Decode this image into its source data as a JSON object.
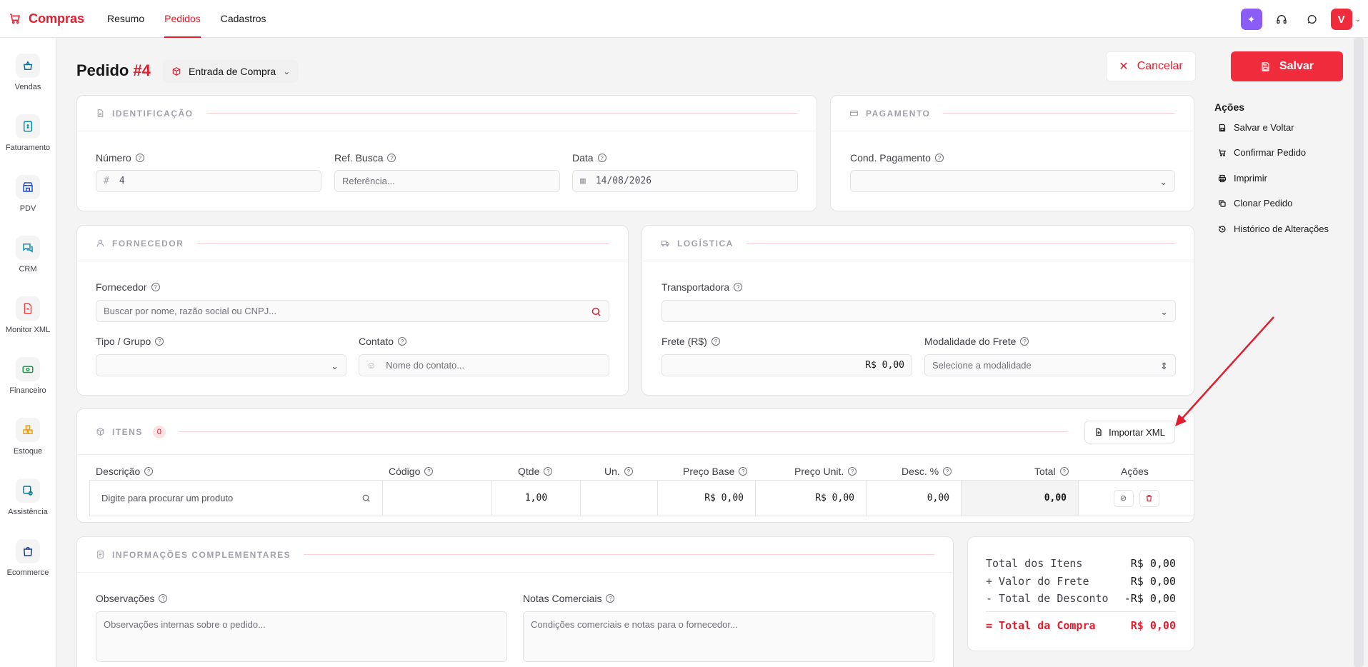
{
  "app": {
    "brand": "Compras",
    "nav": [
      {
        "label": "Resumo"
      },
      {
        "label": "Pedidos"
      },
      {
        "label": "Cadastros"
      }
    ],
    "avatar_initial": "V"
  },
  "sidebar": {
    "items": [
      {
        "label": "Vendas",
        "icon": "basket-icon"
      },
      {
        "label": "Faturamento",
        "icon": "invoice-icon"
      },
      {
        "label": "PDV",
        "icon": "store-icon"
      },
      {
        "label": "CRM",
        "icon": "chat-icon"
      },
      {
        "label": "Monitor XML",
        "icon": "file-icon"
      },
      {
        "label": "Financeiro",
        "icon": "money-icon"
      },
      {
        "label": "Estoque",
        "icon": "boxes-icon"
      },
      {
        "label": "Assistência",
        "icon": "service-icon"
      },
      {
        "label": "Ecommerce",
        "icon": "bag-icon"
      }
    ]
  },
  "header": {
    "title": "Pedido",
    "number": "#4",
    "type": "Entrada de Compra",
    "cancel_label": "Cancelar",
    "save_label": "Salvar"
  },
  "identificacao": {
    "title": "IDENTIFICAÇÃO",
    "numero_label": "Número",
    "numero_value": "4",
    "ref_label": "Ref. Busca",
    "ref_placeholder": "Referência...",
    "data_label": "Data",
    "data_value": "14/08/2026"
  },
  "pagamento": {
    "title": "PAGAMENTO",
    "cond_label": "Cond. Pagamento",
    "cond_value": ""
  },
  "fornecedor": {
    "title": "FORNECEDOR",
    "fornecedor_label": "Fornecedor",
    "fornecedor_placeholder": "Buscar por nome, razão social ou CNPJ...",
    "tipo_label": "Tipo / Grupo",
    "tipo_value": "",
    "contato_label": "Contato",
    "contato_placeholder": "Nome do contato..."
  },
  "logistica": {
    "title": "LOGÍSTICA",
    "transportadora_label": "Transportadora",
    "transportadora_value": "",
    "frete_label": "Frete (R$)",
    "frete_value": "R$ 0,00",
    "modalidade_label": "Modalidade do Frete",
    "modalidade_placeholder": "Selecione a modalidade"
  },
  "acoes": {
    "title": "Ações",
    "items": [
      {
        "label": "Salvar e Voltar"
      },
      {
        "label": "Confirmar Pedido"
      },
      {
        "label": "Imprimir"
      },
      {
        "label": "Clonar Pedido"
      },
      {
        "label": "Histórico de Alterações"
      }
    ]
  },
  "itens": {
    "title": "ITENS",
    "count": "0",
    "import_label": "Importar XML",
    "columns": [
      "Descrição",
      "Código",
      "Qtde",
      "Un.",
      "Preço Base",
      "Preço Unit.",
      "Desc. %",
      "Total",
      "Ações"
    ],
    "row": {
      "descricao_placeholder": "Digite para procurar um produto",
      "codigo": "",
      "qtde": "1,00",
      "un": "",
      "preco_base": "R$ 0,00",
      "preco_unit": "R$ 0,00",
      "desc": "0,00",
      "total": "0,00"
    }
  },
  "complementares": {
    "title": "INFORMAÇÕES COMPLEMENTARES",
    "obs_label": "Observações",
    "obs_placeholder": "Observações internas sobre o pedido...",
    "notas_label": "Notas Comerciais",
    "notas_placeholder": "Condições comerciais e notas para o fornecedor..."
  },
  "totais": {
    "itens_label": "Total dos Itens",
    "itens_value": "R$ 0,00",
    "frete_label": "+ Valor do Frete",
    "frete_value": "R$ 0,00",
    "desconto_label": "- Total de Desconto",
    "desconto_value": "-R$ 0,00",
    "compra_label": "= Total da Compra",
    "compra_value": "R$ 0,00"
  },
  "colors": {
    "accent": "#ef2b3c",
    "annotation_arrow": "#e11d2e"
  }
}
